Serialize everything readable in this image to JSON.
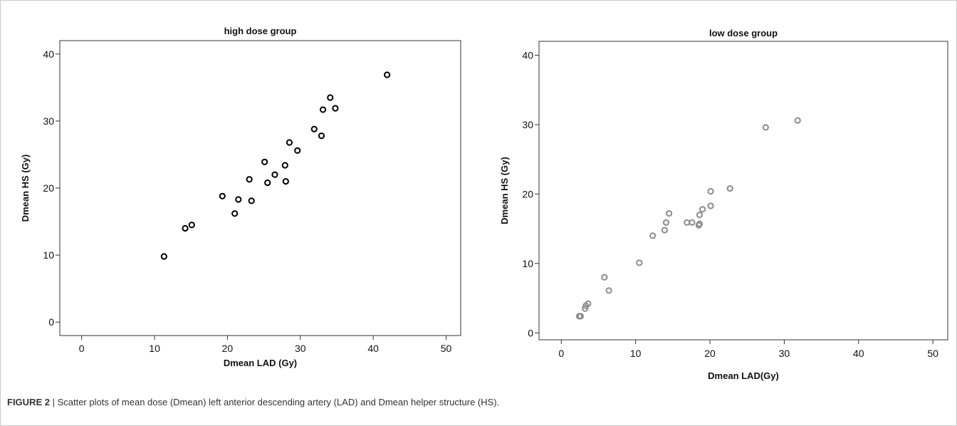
{
  "caption": {
    "label": "FIGURE 2",
    "separator": " | ",
    "text": "Scatter plots of mean dose (Dmean) left anterior descending artery (LAD) and Dmean helper structure (HS)."
  },
  "chart_data": [
    {
      "type": "scatter",
      "title": "high dose group",
      "xlabel": "Dmean LAD (Gy)",
      "ylabel": "Dmean HS (Gy)",
      "xlim": [
        -3,
        52
      ],
      "ylim": [
        -2,
        42
      ],
      "xticks": [
        0,
        10,
        20,
        30,
        40,
        50
      ],
      "yticks": [
        0,
        10,
        20,
        30,
        40
      ],
      "grid": false,
      "marker_color": "#000000",
      "points": [
        {
          "x": 11.3,
          "y": 9.8
        },
        {
          "x": 14.2,
          "y": 14.0
        },
        {
          "x": 15.1,
          "y": 14.5
        },
        {
          "x": 19.3,
          "y": 18.8
        },
        {
          "x": 21.0,
          "y": 16.2
        },
        {
          "x": 21.5,
          "y": 18.3
        },
        {
          "x": 23.0,
          "y": 21.3
        },
        {
          "x": 23.3,
          "y": 18.1
        },
        {
          "x": 25.1,
          "y": 23.9
        },
        {
          "x": 25.5,
          "y": 20.8
        },
        {
          "x": 26.5,
          "y": 22.0
        },
        {
          "x": 27.9,
          "y": 23.4
        },
        {
          "x": 28.0,
          "y": 21.0
        },
        {
          "x": 28.5,
          "y": 26.8
        },
        {
          "x": 29.6,
          "y": 25.6
        },
        {
          "x": 31.9,
          "y": 28.8
        },
        {
          "x": 32.9,
          "y": 27.8
        },
        {
          "x": 33.1,
          "y": 31.7
        },
        {
          "x": 34.1,
          "y": 33.5
        },
        {
          "x": 34.8,
          "y": 31.9
        },
        {
          "x": 41.9,
          "y": 36.9
        }
      ]
    },
    {
      "type": "scatter",
      "title": "low dose group",
      "xlabel": "Dmean LAD(Gy)",
      "ylabel": "Dmean HS (Gy)",
      "xlim": [
        -3,
        52
      ],
      "ylim": [
        -1,
        42
      ],
      "xticks": [
        0,
        10,
        20,
        30,
        40,
        50
      ],
      "yticks": [
        0,
        10,
        20,
        30,
        40
      ],
      "grid": false,
      "marker_color": "#8c8c8c",
      "points": [
        {
          "x": 2.4,
          "y": 2.4
        },
        {
          "x": 2.6,
          "y": 2.4
        },
        {
          "x": 3.2,
          "y": 3.5
        },
        {
          "x": 3.3,
          "y": 3.9
        },
        {
          "x": 3.6,
          "y": 4.2
        },
        {
          "x": 5.8,
          "y": 8.0
        },
        {
          "x": 6.4,
          "y": 6.1
        },
        {
          "x": 10.5,
          "y": 10.1
        },
        {
          "x": 12.3,
          "y": 14.0
        },
        {
          "x": 13.9,
          "y": 14.8
        },
        {
          "x": 14.1,
          "y": 15.9
        },
        {
          "x": 14.5,
          "y": 17.2
        },
        {
          "x": 16.9,
          "y": 15.9
        },
        {
          "x": 17.6,
          "y": 15.9
        },
        {
          "x": 18.5,
          "y": 15.5
        },
        {
          "x": 18.6,
          "y": 15.7
        },
        {
          "x": 18.6,
          "y": 17.0
        },
        {
          "x": 19.0,
          "y": 17.8
        },
        {
          "x": 20.1,
          "y": 18.3
        },
        {
          "x": 20.1,
          "y": 20.4
        },
        {
          "x": 22.7,
          "y": 20.8
        },
        {
          "x": 27.5,
          "y": 29.6
        },
        {
          "x": 31.8,
          "y": 30.6
        }
      ]
    }
  ]
}
